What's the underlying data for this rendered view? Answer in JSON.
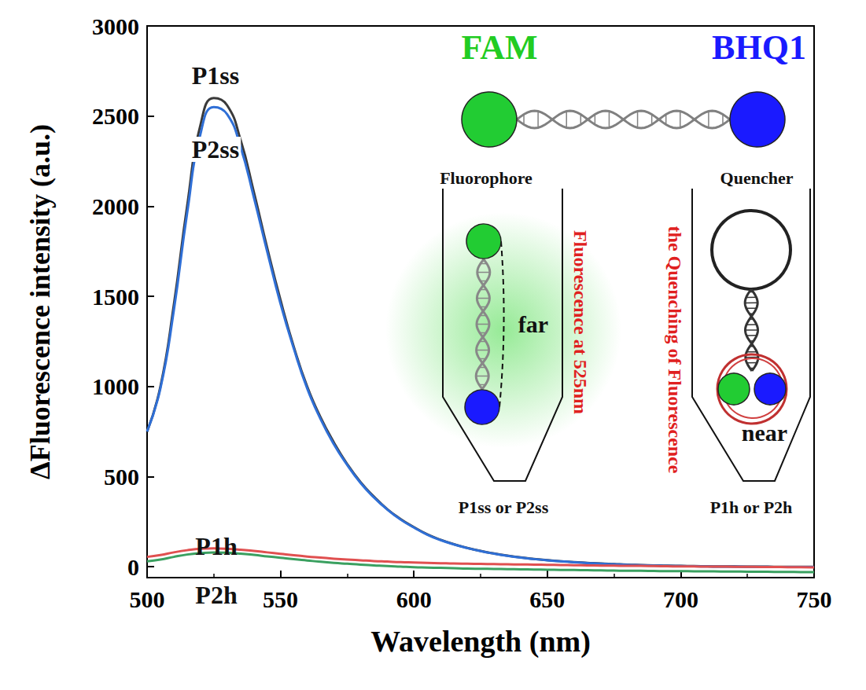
{
  "chart_data": {
    "type": "line",
    "x_label": "Wavelength (nm)",
    "y_label": "ΔFluorescence intensity (a.u.)",
    "x": [
      500,
      505,
      510,
      515,
      520,
      525,
      530,
      535,
      540,
      545,
      550,
      555,
      560,
      565,
      570,
      575,
      580,
      585,
      590,
      595,
      600,
      605,
      610,
      615,
      620,
      625,
      630,
      635,
      640,
      645,
      650,
      655,
      660,
      665,
      670,
      675,
      680,
      685,
      690,
      695,
      700,
      705,
      710,
      715,
      720,
      725,
      730,
      735,
      740,
      745,
      750
    ],
    "series": [
      {
        "name": "P1ss",
        "color": "#3a3a3a",
        "values": [
          750,
          1000,
          1450,
          2000,
          2450,
          2600,
          2560,
          2370,
          2080,
          1770,
          1480,
          1220,
          1000,
          830,
          690,
          570,
          470,
          390,
          320,
          265,
          220,
          180,
          150,
          125,
          105,
          88,
          74,
          62,
          52,
          44,
          37,
          31,
          26,
          22,
          18,
          15,
          12,
          10,
          8,
          6,
          5,
          4,
          3,
          2,
          2,
          1,
          1,
          0,
          0,
          0,
          0
        ]
      },
      {
        "name": "P2ss",
        "color": "#2f6fd6",
        "values": [
          750,
          990,
          1420,
          1960,
          2400,
          2550,
          2510,
          2330,
          2050,
          1750,
          1460,
          1210,
          990,
          820,
          680,
          565,
          465,
          385,
          318,
          262,
          218,
          178,
          148,
          124,
          104,
          87,
          73,
          61,
          51,
          43,
          36,
          30,
          25,
          21,
          17,
          14,
          11,
          9,
          7,
          5,
          4,
          3,
          2,
          1,
          1,
          0,
          0,
          -1,
          -1,
          -1,
          -1
        ]
      },
      {
        "name": "P1h",
        "color": "#e05050",
        "values": [
          55,
          65,
          80,
          92,
          100,
          102,
          100,
          95,
          88,
          80,
          72,
          64,
          57,
          51,
          45,
          40,
          36,
          32,
          29,
          26,
          24,
          22,
          20,
          18,
          17,
          16,
          15,
          14,
          13,
          12,
          11,
          10,
          9,
          8,
          7,
          6,
          5,
          5,
          4,
          3,
          2,
          2,
          1,
          1,
          0,
          0,
          -1,
          -1,
          -2,
          -2,
          -3
        ]
      },
      {
        "name": "P2h",
        "color": "#3aa060",
        "values": [
          30,
          40,
          55,
          68,
          76,
          80,
          78,
          73,
          66,
          58,
          50,
          42,
          35,
          28,
          22,
          17,
          12,
          8,
          4,
          1,
          -2,
          -4,
          -6,
          -8,
          -10,
          -11,
          -12,
          -13,
          -14,
          -15,
          -16,
          -17,
          -18,
          -19,
          -20,
          -21,
          -22,
          -22,
          -23,
          -24,
          -24,
          -25,
          -25,
          -26,
          -26,
          -27,
          -27,
          -28,
          -28,
          -29,
          -29
        ]
      }
    ],
    "xlim": [
      500,
      750
    ],
    "xticks": [
      500,
      550,
      600,
      650,
      700,
      750
    ],
    "ylim": [
      -60,
      3000
    ],
    "yticks": [
      0,
      500,
      1000,
      1500,
      2000,
      2500,
      3000
    ],
    "grid": false,
    "annotations": [
      "FAM",
      "BHQ1",
      "Fluorophore",
      "Quencher",
      "far",
      "near",
      "Fluorescence at 525nm",
      "the Quenching of Fluorescence",
      "P1ss or P2ss",
      "P1h or P2h"
    ]
  }
}
